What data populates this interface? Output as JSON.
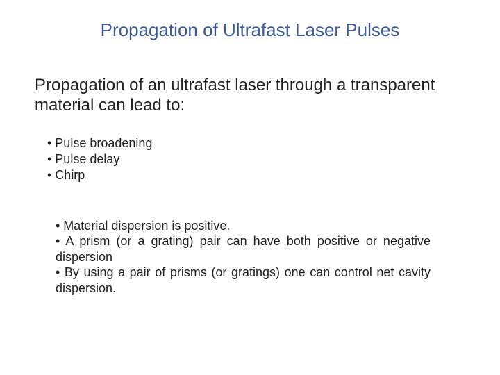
{
  "title": "Propagation of Ultrafast Laser Pulses",
  "intro": "Propagation of an ultrafast laser through a transparent material can lead to:",
  "bullets1": {
    "item0": "• Pulse broadening",
    "item1": "• Pulse delay",
    "item2": "• Chirp"
  },
  "bullets2": {
    "item0": "•  Material dispersion is positive.",
    "item1": "•   A prism (or a grating) pair can have both positive or negative dispersion",
    "item2": "•  By using a pair of prisms (or gratings) one can control net cavity dispersion."
  },
  "colors": {
    "title_color": "#3b5998",
    "body_color": "#222222",
    "background": "#ffffff"
  },
  "typography": {
    "title_fontsize": 26,
    "intro_fontsize": 24,
    "bullet_fontsize": 18,
    "font_family": "Arial"
  }
}
